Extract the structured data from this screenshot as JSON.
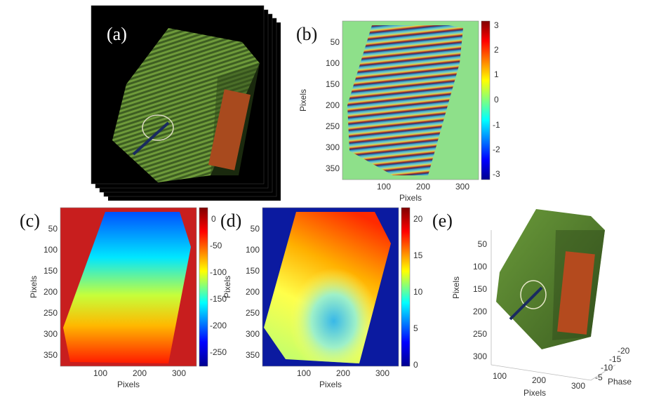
{
  "figure": {
    "panels": [
      {
        "id": "a",
        "label": "(a)",
        "content": "fringe image stack of box"
      },
      {
        "id": "b",
        "label": "(b)",
        "xlabel": "Pixels",
        "ylabel": "Pixels",
        "xticks": [
          "100",
          "200",
          "300"
        ],
        "yticks": [
          "50",
          "100",
          "150",
          "200",
          "250",
          "300",
          "350"
        ],
        "colorbar_ticks": [
          "3",
          "2",
          "1",
          "0",
          "-1",
          "-2",
          "-3"
        ]
      },
      {
        "id": "c",
        "label": "(c)",
        "xlabel": "Pixels",
        "ylabel": "Pixels",
        "xticks": [
          "100",
          "200",
          "300"
        ],
        "yticks": [
          "50",
          "100",
          "150",
          "200",
          "250",
          "300",
          "350"
        ],
        "colorbar_ticks": [
          "0",
          "-50",
          "-100",
          "-150",
          "-200",
          "-250"
        ]
      },
      {
        "id": "d",
        "label": "(d)",
        "xlabel": "Pixels",
        "ylabel": "Pixels",
        "xticks": [
          "100",
          "200",
          "300"
        ],
        "yticks": [
          "50",
          "100",
          "150",
          "200",
          "250",
          "300",
          "350"
        ],
        "colorbar_ticks": [
          "20",
          "15",
          "10",
          "5",
          "0"
        ]
      },
      {
        "id": "e",
        "label": "(e)",
        "xlabel": "Pixels",
        "ylabel": "Pixels",
        "zlabel": "Phase",
        "xticks": [
          "100",
          "200",
          "300"
        ],
        "yticks": [
          "50",
          "100",
          "150",
          "200",
          "250",
          "300"
        ],
        "zticks": [
          "-20",
          "-15",
          "-10",
          "-5"
        ]
      }
    ]
  },
  "colors": {
    "background_green": "#8ee08a",
    "jet_red": "#c81e1e",
    "jet_blue": "#0b1aa0",
    "box_green": "#4e7a2a"
  }
}
